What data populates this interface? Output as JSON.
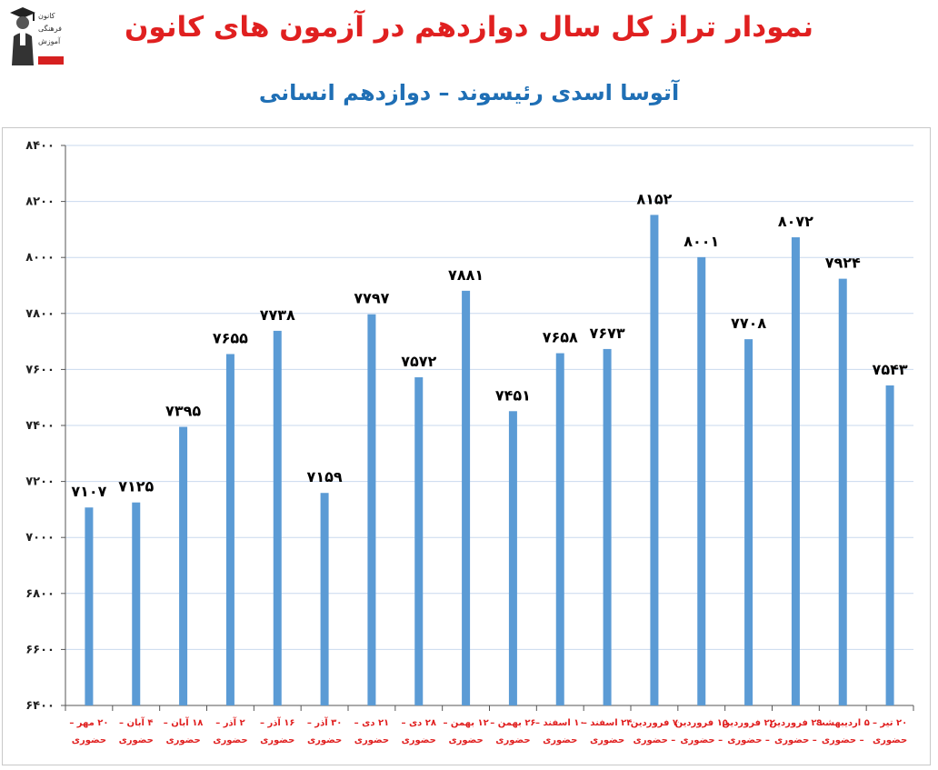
{
  "header": {
    "title": "نمودار تراز کل سال دوازدهم در آزمون های کانون",
    "subtitle": "آتوسا اسدی رئیسوند – دوازدهم انسانی",
    "logo_lines": [
      "کانون",
      "فرهنگی",
      "آموزش"
    ]
  },
  "colors": {
    "title": "#e02020",
    "subtitle": "#1f6fb5",
    "bar": "#5b9bd5",
    "grid": "#c9d9ee",
    "xlabel": "#e02020"
  },
  "chart_data": {
    "type": "bar",
    "title": "",
    "xlabel": "",
    "ylabel": "",
    "ylim": [
      6400,
      8400
    ],
    "yticks": [
      "۶۴۰۰",
      "۶۶۰۰",
      "۶۸۰۰",
      "۷۰۰۰",
      "۷۲۰۰",
      "۷۴۰۰",
      "۷۶۰۰",
      "۷۸۰۰",
      "۸۰۰۰",
      "۸۲۰۰",
      "۸۴۰۰"
    ],
    "ytick_values": [
      6400,
      6600,
      6800,
      7000,
      7200,
      7400,
      7600,
      7800,
      8000,
      8200,
      8400
    ],
    "grid": true,
    "categories": [
      [
        "۲۰ مهر –",
        "حضوری"
      ],
      [
        "۴ آبان –",
        "حضوری"
      ],
      [
        "۱۸ آبان –",
        "حضوری"
      ],
      [
        "۲ آذر –",
        "حضوری"
      ],
      [
        "۱۶ آذر –",
        "حضوری"
      ],
      [
        "۳۰ آذر –",
        "حضوری"
      ],
      [
        "۲۱ دی –",
        "حضوری"
      ],
      [
        "۲۸ دی –",
        "حضوری"
      ],
      [
        "۱۲ بهمن –",
        "حضوری"
      ],
      [
        "۲۶ بهمن –",
        "حضوری"
      ],
      [
        "۱۰ اسفند –",
        "حضوری"
      ],
      [
        "۲۴ اسفند –",
        "حضوری"
      ],
      [
        "۷ فروردین",
        "– حضوری"
      ],
      [
        "۱۵ فروردین",
        "– حضوری"
      ],
      [
        "۲۲ فروردین",
        "– حضوری"
      ],
      [
        "۲۹ فروردین",
        "– حضوری"
      ],
      [
        "۵ اردیبهشت",
        "– حضوری"
      ],
      [
        "۲۰ تیر –",
        "حضوری"
      ]
    ],
    "values": [
      7107,
      7125,
      7395,
      7655,
      7738,
      7159,
      7797,
      7572,
      7881,
      7451,
      7658,
      7673,
      8152,
      8001,
      7708,
      8072,
      7924,
      7543
    ],
    "value_labels": [
      "۷۱۰۷",
      "۷۱۲۵",
      "۷۳۹۵",
      "۷۶۵۵",
      "۷۷۳۸",
      "۷۱۵۹",
      "۷۷۹۷",
      "۷۵۷۲",
      "۷۸۸۱",
      "۷۴۵۱",
      "۷۶۵۸",
      "۷۶۷۳",
      "۸۱۵۲",
      "۸۰۰۱",
      "۷۷۰۸",
      "۸۰۷۲",
      "۷۹۲۴",
      "۷۵۴۳"
    ]
  }
}
